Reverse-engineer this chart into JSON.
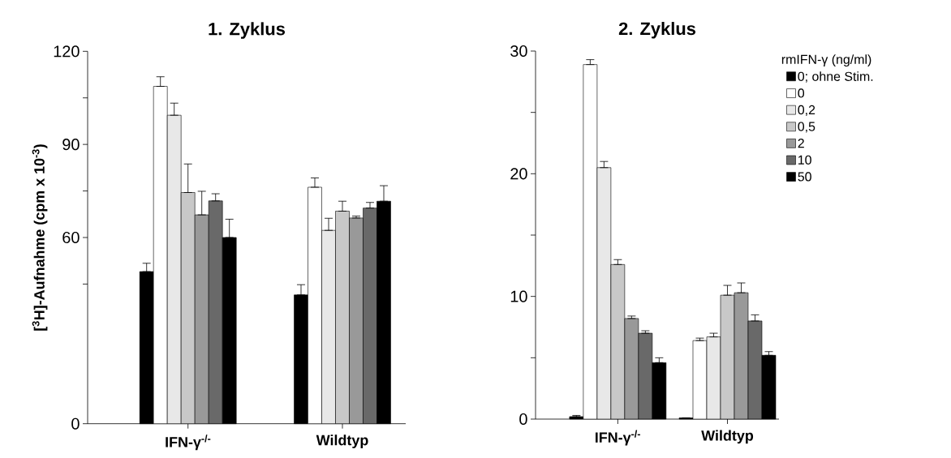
{
  "chart_data": [
    {
      "type": "bar",
      "title": "1. Zyklus",
      "ylabel": "[$^{3}$H]-Aufnahme (cpm x 10$^{-3}$)",
      "categories": [
        "IFN-γ$^{-/-}$",
        "Wildtyp"
      ],
      "ylim": [
        0,
        120
      ],
      "yticks": [
        0,
        {
          "value": 45,
          "label": null
        },
        60,
        {
          "value": 75,
          "label": null
        },
        90,
        {
          "value": 105,
          "label": null
        },
        120
      ],
      "series": [
        {
          "color": "#000000",
          "values": [
            49.0,
            41.5
          ],
          "errors": [
            [
              49.0,
              51.7
            ],
            [
              41.5,
              44.8
            ]
          ]
        },
        {
          "color": "#ffffff",
          "values": [
            108.7,
            76.2
          ],
          "errors": [
            [
              108.7,
              111.8
            ],
            [
              76.2,
              79.2
            ]
          ]
        },
        {
          "color": "#e8e8e8",
          "values": [
            99.4,
            62.3
          ],
          "errors": [
            [
              99.4,
              103.3
            ],
            [
              62.3,
              66.2
            ]
          ]
        },
        {
          "color": "#c8c8c8",
          "values": [
            74.5,
            68.5
          ],
          "errors": [
            [
              74.5,
              83.7
            ],
            [
              68.5,
              71.7
            ]
          ]
        },
        {
          "color": "#999999",
          "values": [
            67.3,
            66.3
          ],
          "errors": [
            [
              67.3,
              74.9
            ],
            [
              66.3,
              66.9
            ]
          ]
        },
        {
          "color": "#696969",
          "values": [
            71.8,
            69.5
          ],
          "errors": [
            [
              71.8,
              74.1
            ],
            [
              69.5,
              71.3
            ]
          ]
        },
        {
          "color": "#000000",
          "values": [
            60.0,
            71.7
          ],
          "errors": [
            [
              60.0,
              65.9
            ],
            [
              71.7,
              76.7
            ]
          ]
        }
      ]
    },
    {
      "type": "bar",
      "title": "2. Zyklus",
      "categories": [
        "IFN-γ$^{-/-}$",
        "Wildtyp"
      ],
      "ylim": [
        0,
        30
      ],
      "yticks": [
        0,
        {
          "value": 5,
          "label": null
        },
        10,
        {
          "value": 15,
          "label": null
        },
        20,
        {
          "value": 25,
          "label": null
        },
        30
      ],
      "legend": "top right",
      "legend_title": "rmIFN-γ  (ng/ml)",
      "series": [
        {
          "name": "0; ohne Stim.",
          "color": "#000000",
          "values": [
            0.2,
            0.1
          ],
          "errors": [
            [
              0.2,
              0.3
            ],
            null
          ]
        },
        {
          "name": "0",
          "color": "#ffffff",
          "values": [
            28.9,
            6.4
          ],
          "errors": [
            [
              28.9,
              29.3
            ],
            [
              6.4,
              6.6
            ]
          ]
        },
        {
          "name": "0,2",
          "color": "#e8e8e8",
          "values": [
            20.5,
            6.7
          ],
          "errors": [
            [
              20.5,
              21.0
            ],
            [
              6.7,
              7.0
            ]
          ]
        },
        {
          "name": "0,5",
          "color": "#c8c8c8",
          "values": [
            12.6,
            10.1
          ],
          "errors": [
            [
              12.6,
              13.0
            ],
            [
              10.1,
              10.9
            ]
          ]
        },
        {
          "name": "2",
          "color": "#999999",
          "values": [
            8.2,
            10.3
          ],
          "errors": [
            [
              8.2,
              8.4
            ],
            [
              10.3,
              11.1
            ]
          ]
        },
        {
          "name": "10",
          "color": "#696969",
          "values": [
            7.0,
            8.0
          ],
          "errors": [
            [
              7.0,
              7.2
            ],
            [
              8.0,
              8.5
            ]
          ]
        },
        {
          "name": "50",
          "color": "#000000",
          "values": [
            4.6,
            5.2
          ],
          "errors": [
            [
              4.6,
              5.0
            ],
            [
              5.2,
              5.5
            ]
          ]
        }
      ]
    }
  ]
}
